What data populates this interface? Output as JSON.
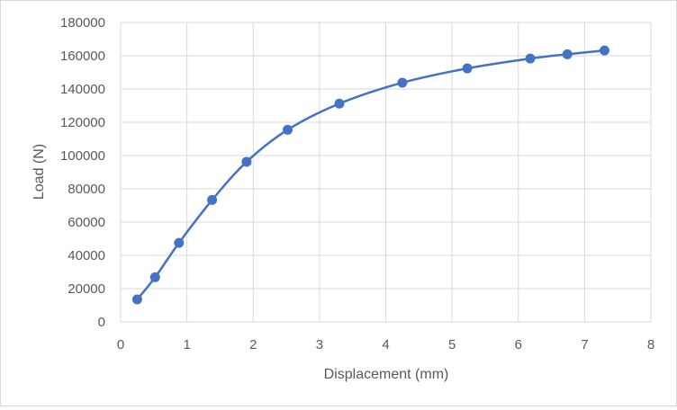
{
  "chart_data": {
    "type": "scatter",
    "title": "",
    "xlabel": "Displacement (mm)",
    "ylabel": "Load (N)",
    "xlim": [
      0,
      8
    ],
    "ylim": [
      0,
      180000
    ],
    "x_ticks": [
      0,
      1,
      2,
      3,
      4,
      5,
      6,
      7,
      8
    ],
    "y_ticks": [
      0,
      20000,
      40000,
      60000,
      80000,
      100000,
      120000,
      140000,
      160000,
      180000
    ],
    "grid": true,
    "legend": "none",
    "smooth_line": true,
    "series": [
      {
        "color": "#4472c4",
        "points": [
          {
            "x": 0.25,
            "y": 13500
          },
          {
            "x": 0.52,
            "y": 26800
          },
          {
            "x": 0.88,
            "y": 47500
          },
          {
            "x": 1.38,
            "y": 73300
          },
          {
            "x": 1.9,
            "y": 96200
          },
          {
            "x": 2.52,
            "y": 115500
          },
          {
            "x": 3.3,
            "y": 131200
          },
          {
            "x": 4.25,
            "y": 143800
          },
          {
            "x": 5.23,
            "y": 152400
          },
          {
            "x": 6.18,
            "y": 158300
          },
          {
            "x": 6.74,
            "y": 160900
          },
          {
            "x": 7.3,
            "y": 163200
          }
        ]
      }
    ]
  }
}
